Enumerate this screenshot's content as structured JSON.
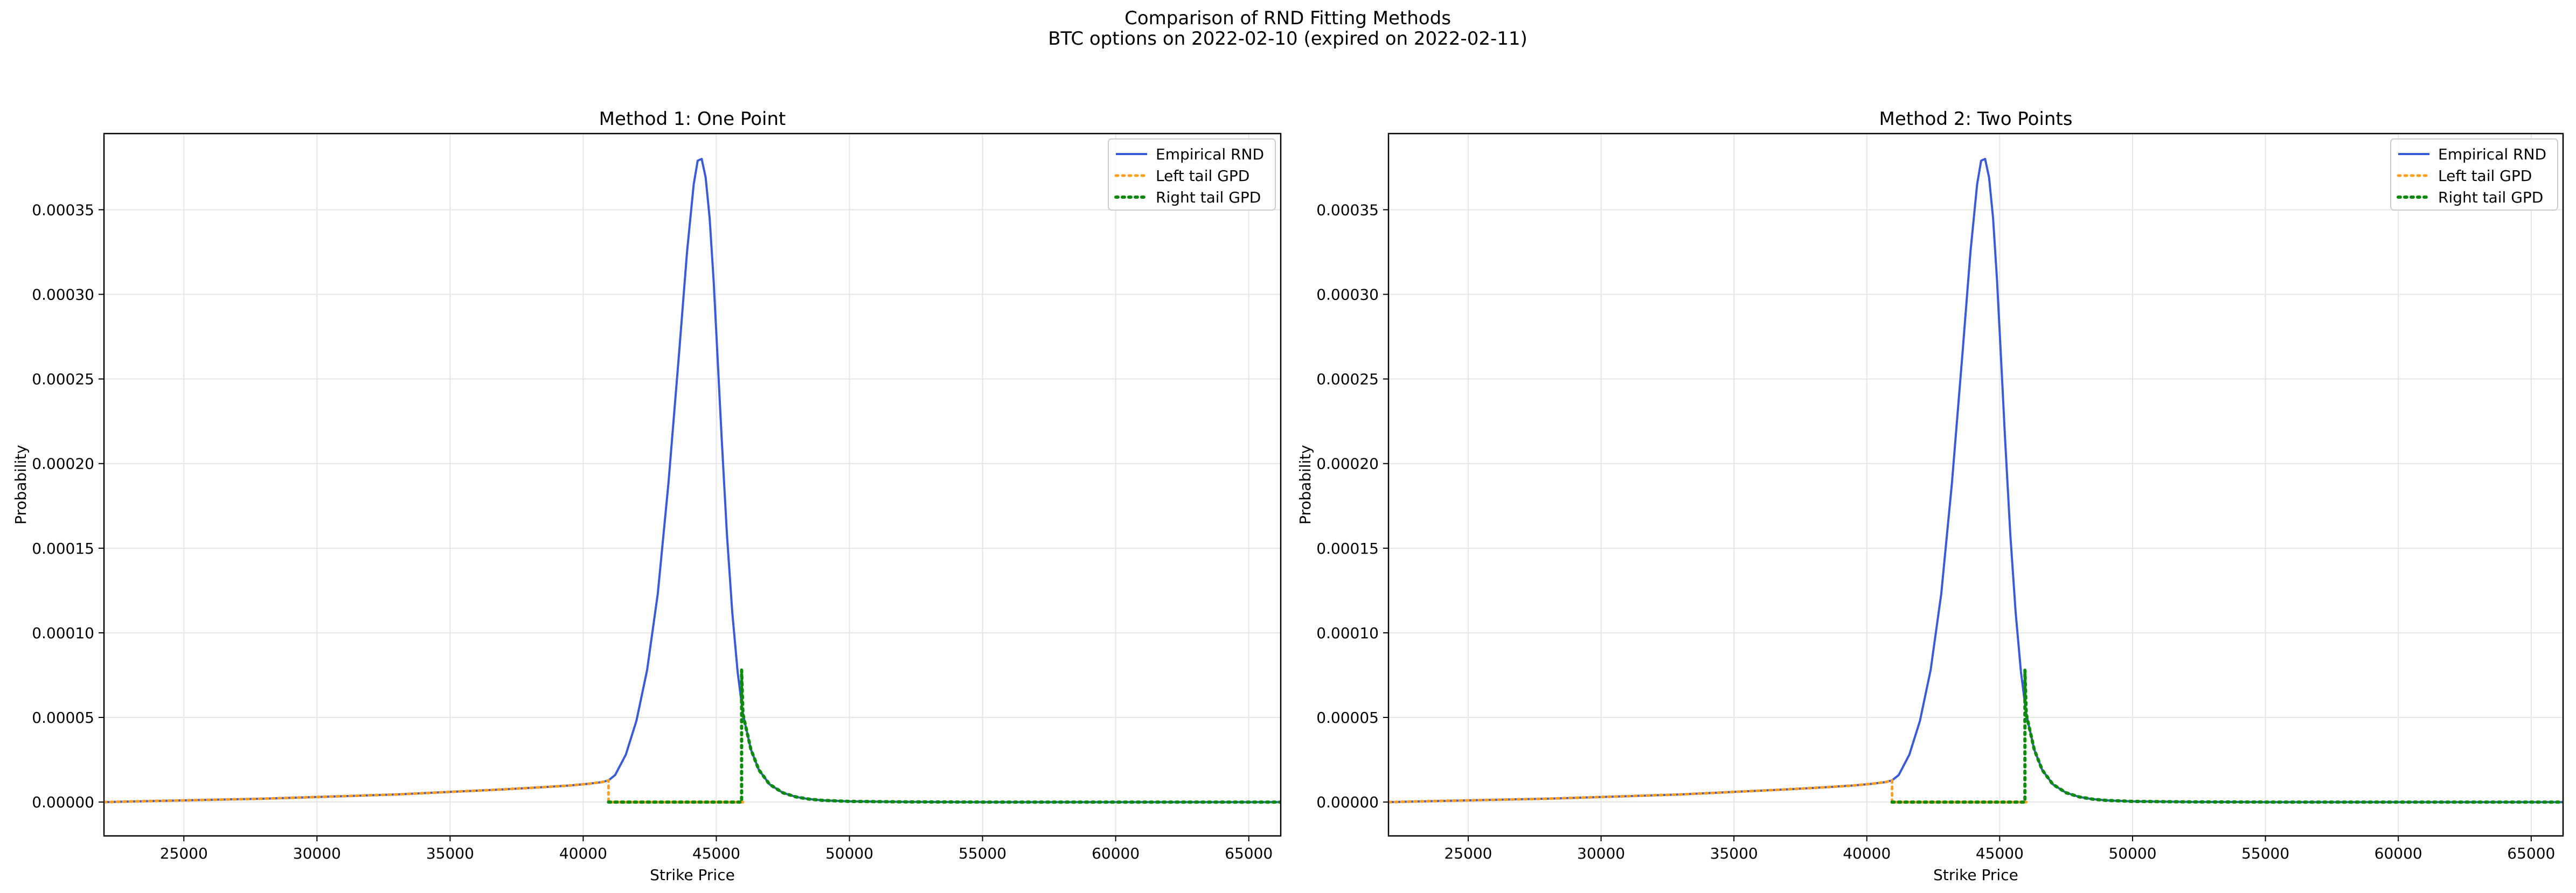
{
  "figure": {
    "title_line1": "Comparison of RND Fitting Methods",
    "title_line2": "BTC options on 2022-02-10 (expired on 2022-02-11)"
  },
  "colors": {
    "empirical": "#3a5bd9",
    "left_tail": "#ff9f1c",
    "right_tail": "#0b8a0b",
    "grid": "#e6e6e6",
    "axes": "#000000"
  },
  "chart_data": [
    {
      "type": "line",
      "title": "Method 1: One Point",
      "xlabel": "Strike Price",
      "ylabel": "Probability",
      "xlim": [
        22000,
        66200
      ],
      "ylim": [
        -2e-05,
        0.000395
      ],
      "xticks": [
        25000,
        30000,
        35000,
        40000,
        45000,
        50000,
        55000,
        60000,
        65000
      ],
      "yticks": [
        0.0,
        5e-05,
        0.0001,
        0.00015,
        0.0002,
        0.00025,
        0.0003,
        0.00035
      ],
      "ytick_labels": [
        "0.00000",
        "0.00005",
        "0.00010",
        "0.00015",
        "0.00020",
        "0.00025",
        "0.00030",
        "0.00035"
      ],
      "grid": true,
      "legend_position": "top-right",
      "series": [
        {
          "name": "Empirical RND",
          "style": "solid",
          "x": [
            22000,
            25000,
            28000,
            31000,
            33000,
            35000,
            37000,
            38500,
            39500,
            40200,
            40700,
            40950,
            41200,
            41600,
            42000,
            42400,
            42800,
            43200,
            43600,
            43900,
            44150,
            44300,
            44450,
            44600,
            44750,
            44900,
            45050,
            45200,
            45400,
            45600,
            45800,
            46000,
            46300,
            46600,
            47000,
            47500,
            48000,
            48500,
            49000,
            50000,
            52000,
            55000,
            60000,
            66200
          ],
          "y": [
            0.0,
            1e-06,
            2e-06,
            3.5e-06,
            4.5e-06,
            6e-06,
            7.5e-06,
            8.8e-06,
            9.8e-06,
            1.08e-05,
            1.18e-05,
            1.28e-05,
            1.6e-05,
            2.8e-05,
            4.8e-05,
            7.8e-05,
            0.000123,
            0.000188,
            0.000265,
            0.000325,
            0.000365,
            0.000379,
            0.00038,
            0.000369,
            0.000345,
            0.000308,
            0.000262,
            0.000215,
            0.000158,
            0.000112,
            7.7e-05,
            5.2e-05,
            3.1e-05,
            1.9e-05,
            1.05e-05,
            5.5e-06,
            3e-06,
            1.7e-06,
            1e-06,
            4e-07,
            1e-07,
            0.0,
            0.0,
            0.0
          ]
        },
        {
          "name": "Left tail GPD",
          "style": "dotted",
          "x": [
            22000,
            25000,
            28000,
            31000,
            33000,
            35000,
            37000,
            38500,
            39500,
            40200,
            40700,
            40950,
            40950,
            46000
          ],
          "y": [
            0.0,
            1e-06,
            2e-06,
            3.5e-06,
            4.5e-06,
            6e-06,
            7.5e-06,
            8.8e-06,
            9.8e-06,
            1.08e-05,
            1.18e-05,
            1.28e-05,
            0.0,
            0.0
          ]
        },
        {
          "name": "Right tail GPD",
          "style": "dotted",
          "x": [
            40950,
            45950,
            45950,
            46000,
            46300,
            46600,
            47000,
            47500,
            48000,
            48500,
            49000,
            50000,
            52000,
            55000,
            60000,
            66200
          ],
          "y": [
            0.0,
            0.0,
            7.8e-05,
            5.2e-05,
            3.1e-05,
            1.9e-05,
            1.05e-05,
            5.5e-06,
            3e-06,
            1.7e-06,
            1e-06,
            4e-07,
            1e-07,
            0.0,
            0.0,
            0.0
          ]
        }
      ]
    },
    {
      "type": "line",
      "title": "Method 2: Two Points",
      "xlabel": "Strike Price",
      "ylabel": "Probability",
      "xlim": [
        22000,
        66200
      ],
      "ylim": [
        -2e-05,
        0.000395
      ],
      "xticks": [
        25000,
        30000,
        35000,
        40000,
        45000,
        50000,
        55000,
        60000,
        65000
      ],
      "yticks": [
        0.0,
        5e-05,
        0.0001,
        0.00015,
        0.0002,
        0.00025,
        0.0003,
        0.00035
      ],
      "ytick_labels": [
        "0.00000",
        "0.00005",
        "0.00010",
        "0.00015",
        "0.00020",
        "0.00025",
        "0.00030",
        "0.00035"
      ],
      "grid": true,
      "legend_position": "top-right",
      "series": [
        {
          "name": "Empirical RND",
          "style": "solid",
          "x": [
            22000,
            25000,
            28000,
            31000,
            33000,
            35000,
            37000,
            38500,
            39500,
            40200,
            40700,
            40950,
            41200,
            41600,
            42000,
            42400,
            42800,
            43200,
            43600,
            43900,
            44150,
            44300,
            44450,
            44600,
            44750,
            44900,
            45050,
            45200,
            45400,
            45600,
            45800,
            46000,
            46300,
            46600,
            47000,
            47500,
            48000,
            48500,
            49000,
            50000,
            52000,
            55000,
            60000,
            66200
          ],
          "y": [
            0.0,
            1e-06,
            2e-06,
            3.5e-06,
            4.5e-06,
            6e-06,
            7.5e-06,
            8.8e-06,
            9.8e-06,
            1.08e-05,
            1.18e-05,
            1.28e-05,
            1.6e-05,
            2.8e-05,
            4.8e-05,
            7.8e-05,
            0.000123,
            0.000188,
            0.000265,
            0.000325,
            0.000365,
            0.000379,
            0.00038,
            0.000369,
            0.000345,
            0.000308,
            0.000262,
            0.000215,
            0.000158,
            0.000112,
            7.7e-05,
            5.2e-05,
            3.1e-05,
            1.9e-05,
            1.05e-05,
            5.5e-06,
            3e-06,
            1.7e-06,
            1e-06,
            4e-07,
            1e-07,
            0.0,
            0.0,
            0.0
          ]
        },
        {
          "name": "Left tail GPD",
          "style": "dotted",
          "x": [
            22000,
            25000,
            28000,
            31000,
            33000,
            35000,
            37000,
            38500,
            39500,
            40200,
            40700,
            40950,
            40950,
            46000
          ],
          "y": [
            0.0,
            1e-06,
            2e-06,
            3.5e-06,
            4.5e-06,
            6e-06,
            7.5e-06,
            8.8e-06,
            9.8e-06,
            1.08e-05,
            1.18e-05,
            1.28e-05,
            0.0,
            0.0
          ]
        },
        {
          "name": "Right tail GPD",
          "style": "dotted",
          "x": [
            40950,
            45950,
            45950,
            46000,
            46300,
            46600,
            47000,
            47500,
            48000,
            48500,
            49000,
            50000,
            52000,
            55000,
            60000,
            66200
          ],
          "y": [
            0.0,
            0.0,
            7.8e-05,
            5.2e-05,
            3.1e-05,
            1.9e-05,
            1.05e-05,
            5.5e-06,
            3e-06,
            1.7e-06,
            1e-06,
            4e-07,
            1e-07,
            0.0,
            0.0,
            0.0
          ]
        }
      ]
    }
  ]
}
